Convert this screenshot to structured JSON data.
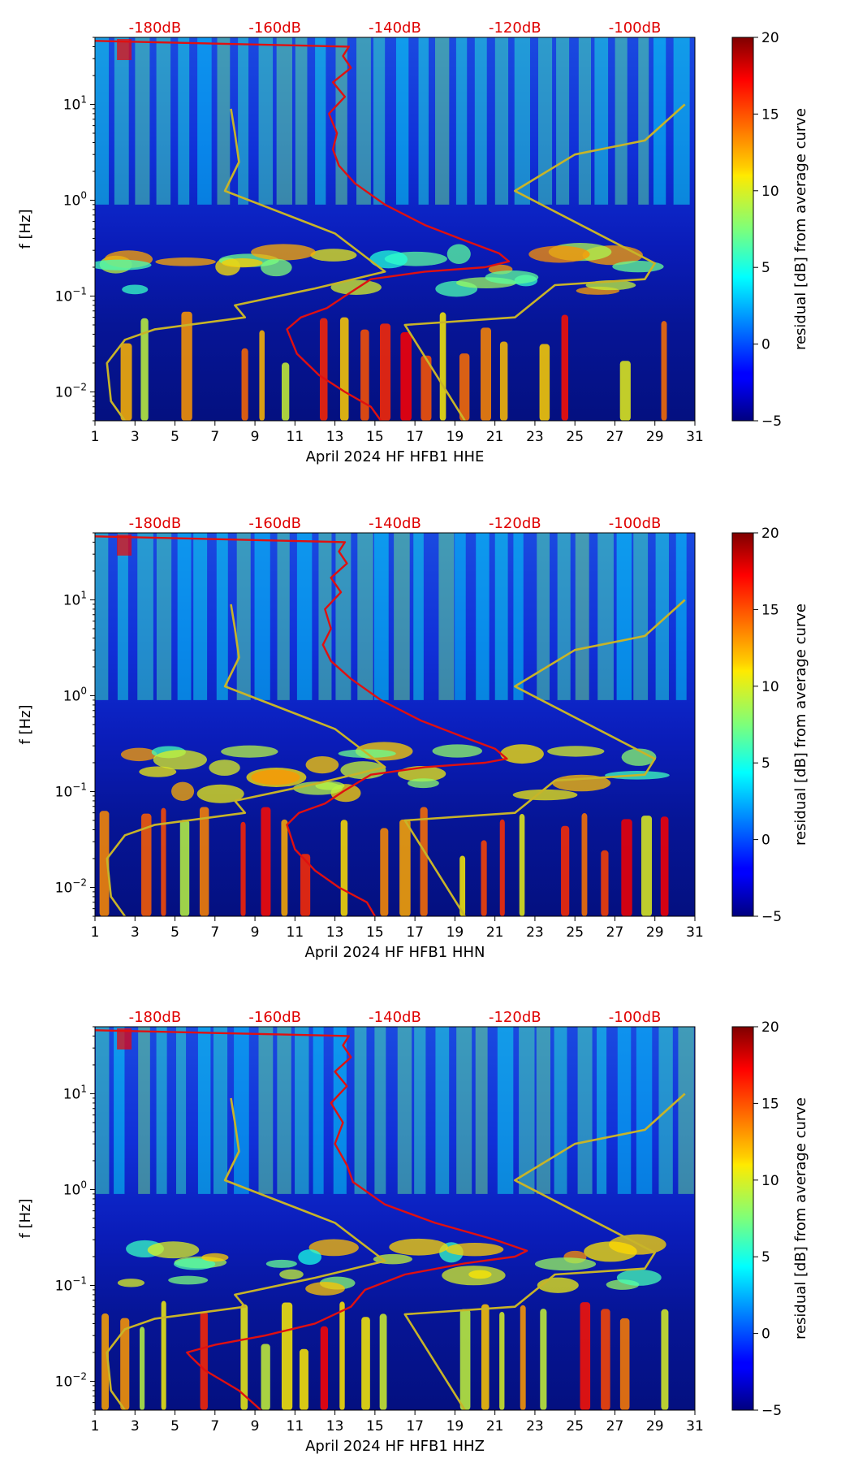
{
  "chart_data": [
    {
      "type": "heatmap",
      "xlabel": "April 2024 HF HFB1  HHE",
      "ylabel": "f [Hz]",
      "x_ticks": [
        1,
        3,
        5,
        7,
        9,
        11,
        13,
        15,
        17,
        19,
        21,
        23,
        25,
        27,
        29,
        31
      ],
      "xlim": [
        1,
        31
      ],
      "ylim": [
        0.005,
        50
      ],
      "y_scale": "log",
      "y_tick_labels": [
        "10^-2",
        "10^-1",
        "10^0",
        "10^1"
      ],
      "db_ticks": [
        "-180dB",
        "-160dB",
        "-140dB",
        "-120dB",
        "-100dB"
      ],
      "db_tick_x": [
        4.0,
        10.0,
        16.0,
        22.0,
        28.0
      ],
      "colorbar": {
        "label": "residual [dB] from average curve",
        "ticks": [
          -5,
          0,
          5,
          10,
          15,
          20
        ],
        "range": [
          -5,
          20
        ],
        "colormap": "jet"
      },
      "series": [
        {
          "color": "#e01010",
          "points": [
            [
              15.3,
              0.005
            ],
            [
              14.8,
              0.007
            ],
            [
              13.5,
              0.01
            ],
            [
              12.2,
              0.015
            ],
            [
              11.1,
              0.025
            ],
            [
              10.6,
              0.045
            ],
            [
              11.3,
              0.06
            ],
            [
              12.6,
              0.075
            ],
            [
              13.5,
              0.1
            ],
            [
              14.8,
              0.15
            ],
            [
              17.5,
              0.18
            ],
            [
              20.5,
              0.2
            ],
            [
              21.7,
              0.23
            ],
            [
              21.2,
              0.28
            ],
            [
              19.5,
              0.38
            ],
            [
              17.5,
              0.55
            ],
            [
              15.5,
              0.9
            ],
            [
              14,
              1.5
            ],
            [
              13.2,
              2.3
            ],
            [
              12.9,
              3.4
            ],
            [
              13.1,
              5
            ],
            [
              12.7,
              8
            ],
            [
              13.5,
              12
            ],
            [
              12.9,
              17
            ],
            [
              13.8,
              24
            ],
            [
              13.4,
              32
            ],
            [
              13.7,
              40
            ],
            [
              1.0,
              46
            ]
          ]
        },
        {
          "color": "#c8b428",
          "points": [
            [
              19.5,
              0.005
            ],
            [
              16.5,
              0.05
            ],
            [
              22,
              0.06
            ],
            [
              24,
              0.13
            ],
            [
              28.5,
              0.15
            ],
            [
              29,
              0.22
            ],
            [
              22,
              1.25
            ],
            [
              25,
              3
            ],
            [
              28.5,
              4.2
            ],
            [
              30.5,
              10
            ]
          ]
        },
        {
          "color": "#c8b428",
          "points": [
            [
              2.5,
              0.005
            ],
            [
              1.8,
              0.008
            ],
            [
              1.6,
              0.02
            ],
            [
              2.5,
              0.035
            ],
            [
              4,
              0.045
            ],
            [
              8.5,
              0.06
            ],
            [
              8.0,
              0.08
            ],
            [
              12,
              0.12
            ],
            [
              15.5,
              0.18
            ],
            [
              13,
              0.45
            ],
            [
              7.5,
              1.25
            ],
            [
              8.2,
              2.5
            ],
            [
              8.0,
              5
            ],
            [
              7.8,
              9
            ]
          ]
        }
      ]
    },
    {
      "type": "heatmap",
      "xlabel": "April 2024 HF HFB1  HHN",
      "ylabel": "f [Hz]",
      "x_ticks": [
        1,
        3,
        5,
        7,
        9,
        11,
        13,
        15,
        17,
        19,
        21,
        23,
        25,
        27,
        29,
        31
      ],
      "xlim": [
        1,
        31
      ],
      "ylim": [
        0.005,
        50
      ],
      "y_scale": "log",
      "y_tick_labels": [
        "10^-2",
        "10^-1",
        "10^0",
        "10^1"
      ],
      "db_ticks": [
        "-180dB",
        "-160dB",
        "-140dB",
        "-120dB",
        "-100dB"
      ],
      "db_tick_x": [
        4.0,
        10.0,
        16.0,
        22.0,
        28.0
      ],
      "colorbar": {
        "label": "residual [dB] from average curve",
        "ticks": [
          -5,
          0,
          5,
          10,
          15,
          20
        ],
        "range": [
          -5,
          20
        ],
        "colormap": "jet"
      },
      "series": [
        {
          "color": "#e01010",
          "points": [
            [
              15.0,
              0.005
            ],
            [
              14.6,
              0.007
            ],
            [
              13.2,
              0.01
            ],
            [
              12.0,
              0.015
            ],
            [
              11.0,
              0.025
            ],
            [
              10.6,
              0.045
            ],
            [
              11.2,
              0.06
            ],
            [
              12.5,
              0.075
            ],
            [
              13.4,
              0.1
            ],
            [
              14.8,
              0.15
            ],
            [
              17.5,
              0.18
            ],
            [
              20.5,
              0.2
            ],
            [
              21.6,
              0.22
            ],
            [
              21.0,
              0.28
            ],
            [
              19.3,
              0.38
            ],
            [
              17.3,
              0.55
            ],
            [
              15.3,
              0.9
            ],
            [
              13.8,
              1.5
            ],
            [
              12.8,
              2.3
            ],
            [
              12.4,
              3.4
            ],
            [
              12.8,
              5
            ],
            [
              12.5,
              8
            ],
            [
              13.3,
              12
            ],
            [
              12.8,
              17
            ],
            [
              13.6,
              24
            ],
            [
              13.2,
              32
            ],
            [
              13.5,
              40
            ],
            [
              1.0,
              46
            ]
          ]
        },
        {
          "color": "#c8b428",
          "points": [
            [
              19.5,
              0.005
            ],
            [
              16.5,
              0.05
            ],
            [
              22,
              0.06
            ],
            [
              24,
              0.13
            ],
            [
              28.5,
              0.15
            ],
            [
              29,
              0.22
            ],
            [
              22,
              1.25
            ],
            [
              25,
              3
            ],
            [
              28.5,
              4.2
            ],
            [
              30.5,
              10
            ]
          ]
        },
        {
          "color": "#c8b428",
          "points": [
            [
              2.5,
              0.005
            ],
            [
              1.8,
              0.008
            ],
            [
              1.6,
              0.02
            ],
            [
              2.5,
              0.035
            ],
            [
              4,
              0.045
            ],
            [
              8.5,
              0.06
            ],
            [
              8.0,
              0.08
            ],
            [
              12,
              0.12
            ],
            [
              15.5,
              0.18
            ],
            [
              13,
              0.45
            ],
            [
              7.5,
              1.25
            ],
            [
              8.2,
              2.5
            ],
            [
              8.0,
              5
            ],
            [
              7.8,
              9
            ]
          ]
        }
      ]
    },
    {
      "type": "heatmap",
      "xlabel": "April 2024 HF HFB1  HHZ",
      "ylabel": "f [Hz]",
      "x_ticks": [
        1,
        3,
        5,
        7,
        9,
        11,
        13,
        15,
        17,
        19,
        21,
        23,
        25,
        27,
        29,
        31
      ],
      "xlim": [
        1,
        31
      ],
      "ylim": [
        0.005,
        50
      ],
      "y_scale": "log",
      "y_tick_labels": [
        "10^-2",
        "10^-1",
        "10^0",
        "10^1"
      ],
      "db_ticks": [
        "-180dB",
        "-160dB",
        "-140dB",
        "-120dB",
        "-100dB"
      ],
      "db_tick_x": [
        4.0,
        10.0,
        16.0,
        22.0,
        28.0
      ],
      "colorbar": {
        "label": "residual [dB] from average curve",
        "ticks": [
          -5,
          0,
          5,
          10,
          15,
          20
        ],
        "range": [
          -5,
          20
        ],
        "colormap": "jet"
      },
      "series": [
        {
          "color": "#e01010",
          "points": [
            [
              9.3,
              0.005
            ],
            [
              8.2,
              0.008
            ],
            [
              6.5,
              0.013
            ],
            [
              5.8,
              0.018
            ],
            [
              5.6,
              0.02
            ],
            [
              7.0,
              0.024
            ],
            [
              9.5,
              0.03
            ],
            [
              12.0,
              0.04
            ],
            [
              13.8,
              0.06
            ],
            [
              14.5,
              0.09
            ],
            [
              16.5,
              0.13
            ],
            [
              19.5,
              0.17
            ],
            [
              22.0,
              0.2
            ],
            [
              22.6,
              0.23
            ],
            [
              21.0,
              0.3
            ],
            [
              18.0,
              0.45
            ],
            [
              15.5,
              0.7
            ],
            [
              13.9,
              1.2
            ],
            [
              13.6,
              1.8
            ],
            [
              13.0,
              3
            ],
            [
              13.4,
              5
            ],
            [
              12.8,
              8
            ],
            [
              13.6,
              12
            ],
            [
              13.0,
              17
            ],
            [
              13.8,
              24
            ],
            [
              13.4,
              32
            ],
            [
              13.7,
              40
            ],
            [
              1.0,
              46
            ]
          ]
        },
        {
          "color": "#c8b428",
          "points": [
            [
              19.5,
              0.005
            ],
            [
              16.5,
              0.05
            ],
            [
              22,
              0.06
            ],
            [
              24,
              0.13
            ],
            [
              28.5,
              0.15
            ],
            [
              29,
              0.22
            ],
            [
              22,
              1.25
            ],
            [
              25,
              3
            ],
            [
              28.5,
              4.2
            ],
            [
              30.5,
              10
            ]
          ]
        },
        {
          "color": "#c8b428",
          "points": [
            [
              2.5,
              0.005
            ],
            [
              1.8,
              0.008
            ],
            [
              1.6,
              0.02
            ],
            [
              2.5,
              0.035
            ],
            [
              4,
              0.045
            ],
            [
              8.5,
              0.06
            ],
            [
              8.0,
              0.08
            ],
            [
              12,
              0.12
            ],
            [
              15.5,
              0.18
            ],
            [
              13,
              0.45
            ],
            [
              7.5,
              1.25
            ],
            [
              8.2,
              2.5
            ],
            [
              8.0,
              5
            ],
            [
              7.8,
              9
            ]
          ]
        }
      ]
    }
  ]
}
